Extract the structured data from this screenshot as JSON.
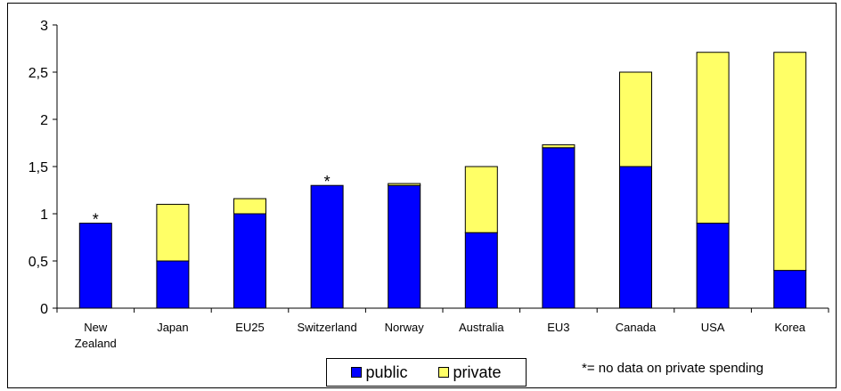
{
  "chart_data": {
    "type": "bar",
    "stacked": true,
    "categories": [
      "New Zealand",
      "Japan",
      "EU25",
      "Switzerland",
      "Norway",
      "Australia",
      "EU3",
      "Canada",
      "USA",
      "Korea"
    ],
    "category_lines": [
      [
        "New",
        "Zealand"
      ],
      [
        "Japan"
      ],
      [
        "EU25"
      ],
      [
        "Switzerland"
      ],
      [
        "Norway"
      ],
      [
        "Australia"
      ],
      [
        "EU3"
      ],
      [
        "Canada"
      ],
      [
        "USA"
      ],
      [
        "Korea"
      ]
    ],
    "series": [
      {
        "name": "public",
        "color": "#0000ff",
        "values": [
          0.9,
          0.5,
          1.0,
          1.3,
          1.3,
          0.8,
          1.7,
          1.5,
          0.9,
          0.4
        ]
      },
      {
        "name": "private",
        "color": "#ffff66",
        "values": [
          0.0,
          0.6,
          0.16,
          0.0,
          0.02,
          0.7,
          0.03,
          1.0,
          1.81,
          2.31
        ]
      }
    ],
    "ylim": [
      0,
      3
    ],
    "yticks": [
      "0",
      "0,5",
      "1",
      "1,5",
      "2",
      "2,5",
      "3"
    ],
    "ytick_values": [
      0,
      0.5,
      1,
      1.5,
      2,
      2.5,
      3
    ],
    "annotations": [
      {
        "category": "New Zealand",
        "text": "*"
      },
      {
        "category": "Switzerland",
        "text": "*"
      }
    ],
    "legend": {
      "placement": "bottom-center",
      "labels": [
        "public",
        "private"
      ]
    },
    "footnote": "*= no data on private spending",
    "title": "",
    "xlabel": "",
    "ylabel": ""
  }
}
